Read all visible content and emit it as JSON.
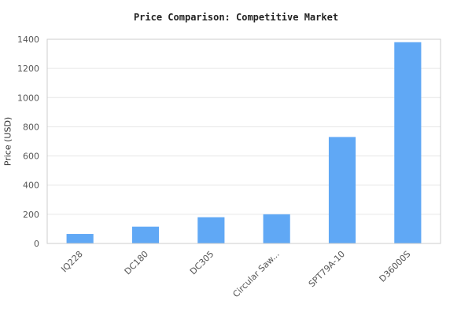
{
  "chart_data": {
    "type": "bar",
    "title": "Price Comparison: Competitive Market",
    "xlabel": "",
    "ylabel": "Price (USD)",
    "categories": [
      "IQ228",
      "DC180",
      "DC305",
      "Circular Saw...",
      "SPT79A-10",
      "D36000S"
    ],
    "values": [
      65,
      115,
      180,
      200,
      730,
      1380
    ],
    "ylim": [
      0,
      1400
    ],
    "yticks": [
      0,
      200,
      400,
      600,
      800,
      1000,
      1200,
      1400
    ],
    "grid": true,
    "legend": "none",
    "colors": {
      "bar": "#60a8f5",
      "grid": "#e6e6e6",
      "axis": "#cccccc",
      "tick_text": "#555555"
    }
  }
}
